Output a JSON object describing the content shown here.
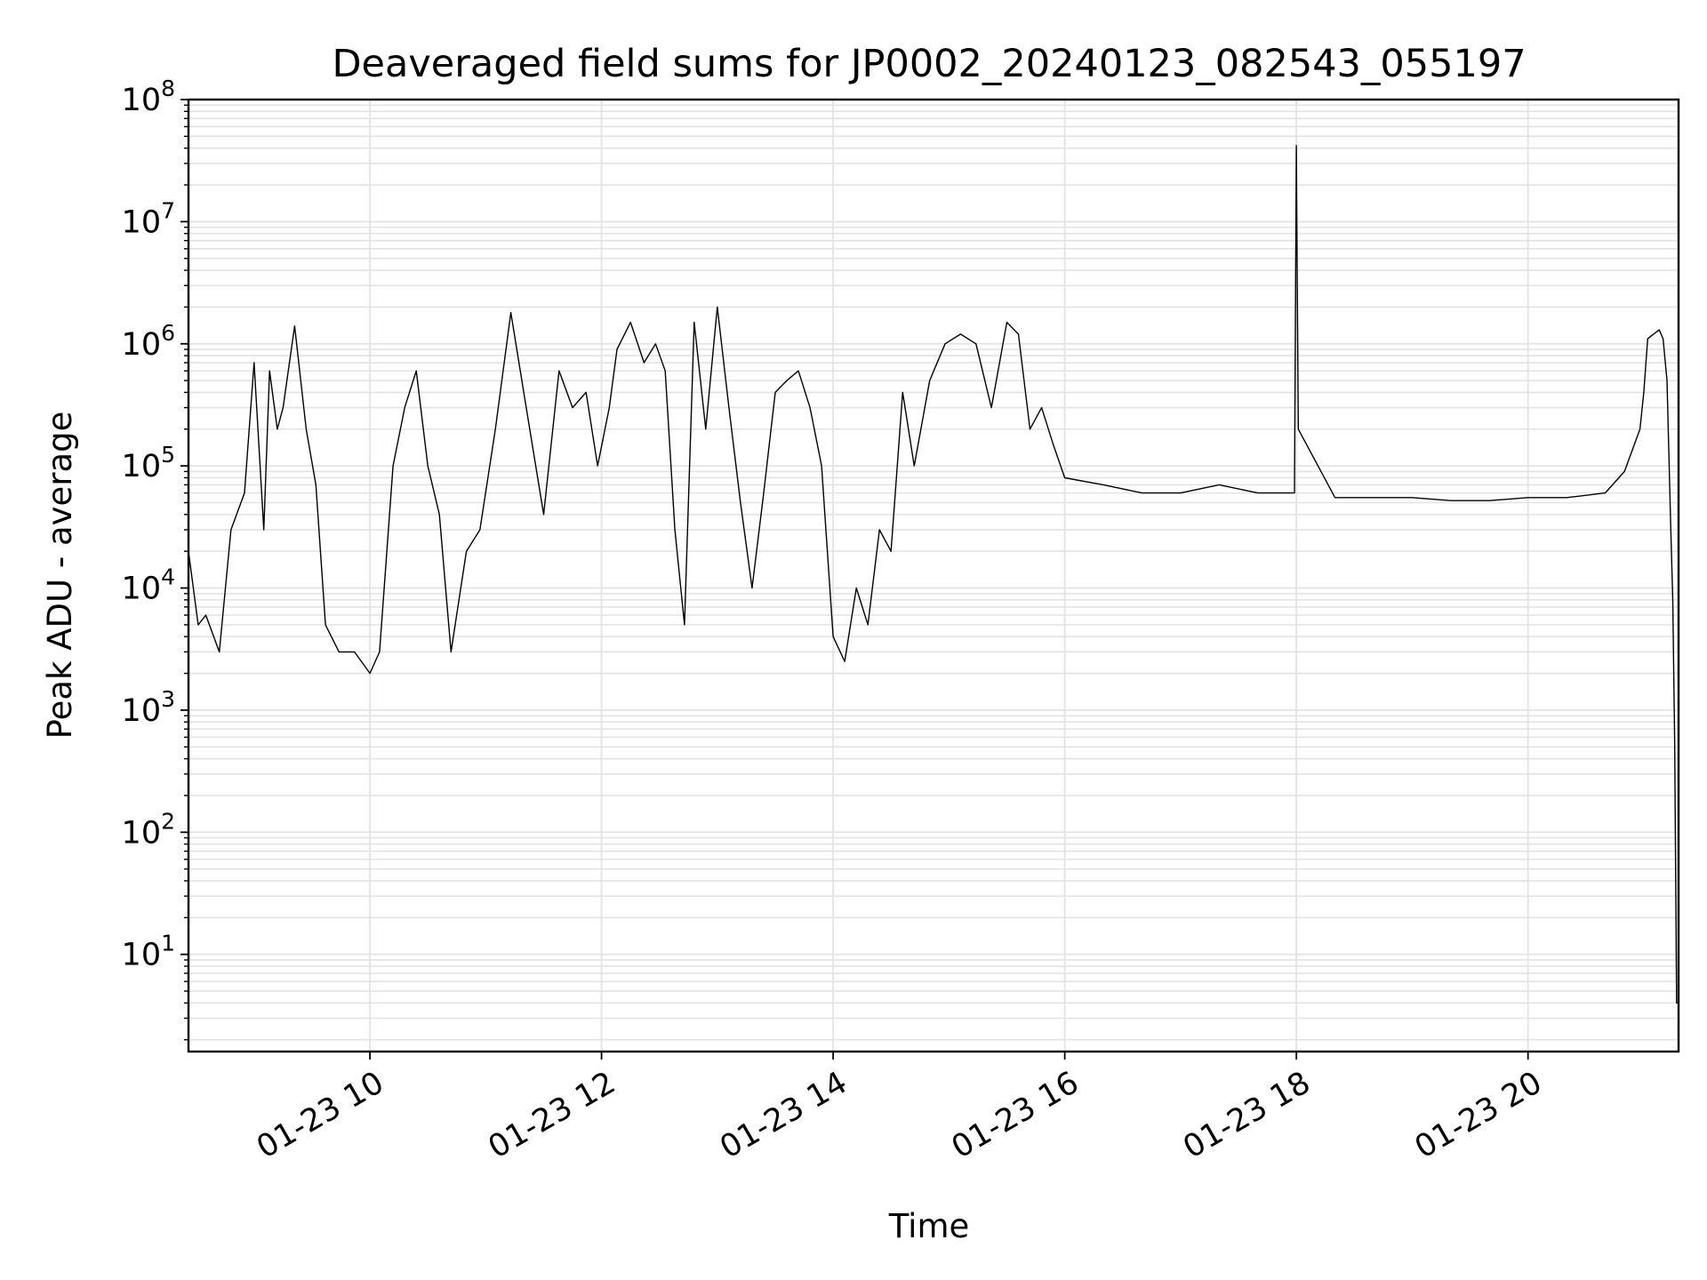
{
  "chart_data": {
    "type": "line",
    "title": "Deaveraged field sums for JP0002_20240123_082543_055197",
    "xlabel": "Time",
    "ylabel": "Peak ADU - average",
    "x_start": "01-23 08:26",
    "x_end": "01-23 21:18",
    "xlim": [
      "01-23 08:26",
      "01-23 21:18"
    ],
    "ylim": [
      1.6,
      100000000
    ],
    "yscale": "log",
    "grid": true,
    "legend": "none",
    "line_color": "#000000",
    "grid_color": "#e3e3e3",
    "xticks": [
      {
        "t": "01-23 10:00",
        "label": "01-23 10"
      },
      {
        "t": "01-23 12:00",
        "label": "01-23 12"
      },
      {
        "t": "01-23 14:00",
        "label": "01-23 14"
      },
      {
        "t": "01-23 16:00",
        "label": "01-23 16"
      },
      {
        "t": "01-23 18:00",
        "label": "01-23 18"
      },
      {
        "t": "01-23 20:00",
        "label": "01-23 20"
      }
    ],
    "yticks": [
      {
        "value": 10,
        "base": "10",
        "exp": "1"
      },
      {
        "value": 100,
        "base": "10",
        "exp": "2"
      },
      {
        "value": 1000,
        "base": "10",
        "exp": "3"
      },
      {
        "value": 10000,
        "base": "10",
        "exp": "4"
      },
      {
        "value": 100000,
        "base": "10",
        "exp": "5"
      },
      {
        "value": 1000000,
        "base": "10",
        "exp": "6"
      },
      {
        "value": 10000000,
        "base": "10",
        "exp": "7"
      },
      {
        "value": 100000000,
        "base": "10",
        "exp": "8"
      }
    ],
    "series": [
      {
        "x": [
          "01-23 08:26",
          "01-23 08:31",
          "01-23 08:35",
          "01-23 08:42",
          "01-23 08:48",
          "01-23 08:55",
          "01-23 09:00",
          "01-23 09:05",
          "01-23 09:08",
          "01-23 09:12",
          "01-23 09:15",
          "01-23 09:21",
          "01-23 09:27",
          "01-23 09:32",
          "01-23 09:37",
          "01-23 09:44",
          "01-23 09:52",
          "01-23 10:00",
          "01-23 10:05",
          "01-23 10:12",
          "01-23 10:18",
          "01-23 10:24",
          "01-23 10:30",
          "01-23 10:36",
          "01-23 10:42",
          "01-23 10:50",
          "01-23 10:57",
          "01-23 11:05",
          "01-23 11:13",
          "01-23 11:21",
          "01-23 11:30",
          "01-23 11:38",
          "01-23 11:45",
          "01-23 11:52",
          "01-23 11:58",
          "01-23 12:04",
          "01-23 12:08",
          "01-23 12:15",
          "01-23 12:22",
          "01-23 12:28",
          "01-23 12:33",
          "01-23 12:38",
          "01-23 12:43",
          "01-23 12:48",
          "01-23 12:54",
          "01-23 13:00",
          "01-23 13:06",
          "01-23 13:12",
          "01-23 13:18",
          "01-23 13:24",
          "01-23 13:30",
          "01-23 13:36",
          "01-23 13:42",
          "01-23 13:48",
          "01-23 13:54",
          "01-23 14:00",
          "01-23 14:06",
          "01-23 14:12",
          "01-23 14:18",
          "01-23 14:24",
          "01-23 14:30",
          "01-23 14:36",
          "01-23 14:42",
          "01-23 14:50",
          "01-23 14:58",
          "01-23 15:06",
          "01-23 15:14",
          "01-23 15:22",
          "01-23 15:30",
          "01-23 15:36",
          "01-23 15:42",
          "01-23 15:48",
          "01-23 15:54",
          "01-23 16:00",
          "01-23 16:20",
          "01-23 16:40",
          "01-23 17:00",
          "01-23 17:20",
          "01-23 17:40",
          "01-23 17:59",
          "01-23 18:00",
          "01-23 18:01",
          "01-23 18:20",
          "01-23 18:40",
          "01-23 19:00",
          "01-23 19:20",
          "01-23 19:40",
          "01-23 20:00",
          "01-23 20:20",
          "01-23 20:40",
          "01-23 20:50",
          "01-23 20:58",
          "01-23 21:00",
          "01-23 21:02",
          "01-23 21:05",
          "01-23 21:08",
          "01-23 21:10",
          "01-23 21:12",
          "01-23 21:14",
          "01-23 21:15",
          "01-23 21:16",
          "01-23 21:17",
          "01-23 21:18"
        ],
        "y": [
          20000,
          5000,
          6000,
          3000,
          30000,
          60000,
          700000,
          30000,
          600000,
          200000,
          300000,
          1400000,
          200000,
          70000,
          5000,
          3000,
          3000,
          2000,
          3000,
          100000,
          300000,
          600000,
          100000,
          40000,
          3000,
          20000,
          30000,
          200000,
          1800000,
          300000,
          40000,
          600000,
          300000,
          400000,
          100000,
          300000,
          900000,
          1500000,
          700000,
          1000000,
          600000,
          30000,
          5000,
          1500000,
          200000,
          2000000,
          300000,
          50000,
          10000,
          60000,
          400000,
          500000,
          600000,
          300000,
          100000,
          4000,
          2500,
          10000,
          5000,
          30000,
          20000,
          400000,
          100000,
          500000,
          1000000,
          1200000,
          1000000,
          300000,
          1500000,
          1200000,
          200000,
          300000,
          150000,
          80000,
          70000,
          60000,
          60000,
          70000,
          60000,
          60000,
          42000000,
          200000,
          55000,
          55000,
          55000,
          52000,
          52000,
          55000,
          55000,
          60000,
          90000,
          200000,
          400000,
          1100000,
          1200000,
          1300000,
          1100000,
          500000,
          30000,
          8000,
          500,
          4,
          4
        ]
      }
    ]
  }
}
